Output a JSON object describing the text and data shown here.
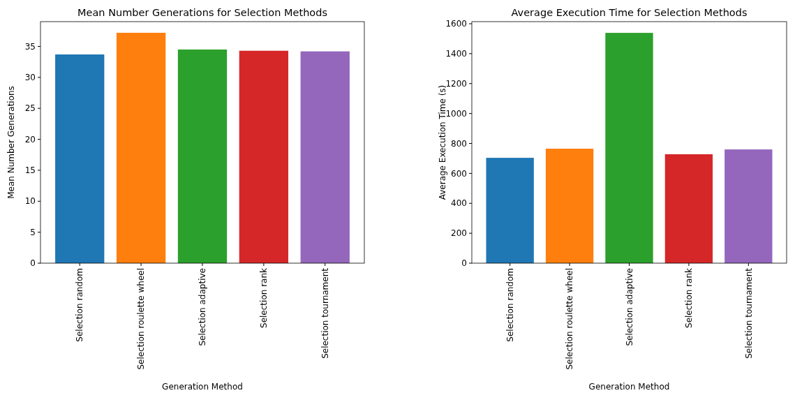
{
  "chart_data": [
    {
      "type": "bar",
      "title": "Mean Number Generations for Selection Methods",
      "xlabel": "Generation Method",
      "ylabel": "Mean Number Generations",
      "categories": [
        "Selection random",
        "Selection roulette wheel",
        "Selection adaptive",
        "Selection rank",
        "Selection tournament"
      ],
      "values": [
        33.7,
        37.2,
        34.5,
        34.3,
        34.2
      ],
      "colors": [
        "#1f77b4",
        "#ff7f0e",
        "#2ca02c",
        "#d62728",
        "#9467bd"
      ],
      "ylim": [
        0,
        39
      ],
      "yticks": [
        0,
        5,
        10,
        15,
        20,
        25,
        30,
        35
      ],
      "grid": false
    },
    {
      "type": "bar",
      "title": "Average Execution Time for Selection Methods",
      "xlabel": "Generation Method",
      "ylabel": "Average Execution Time (s)",
      "categories": [
        "Selection random",
        "Selection roulette wheel",
        "Selection adaptive",
        "Selection rank",
        "Selection tournament"
      ],
      "values": [
        704,
        765,
        1539,
        728,
        760
      ],
      "colors": [
        "#1f77b4",
        "#ff7f0e",
        "#2ca02c",
        "#d62728",
        "#9467bd"
      ],
      "ylim": [
        0,
        1614
      ],
      "yticks": [
        0,
        200,
        400,
        600,
        800,
        1000,
        1200,
        1400,
        1600
      ],
      "grid": false
    }
  ]
}
